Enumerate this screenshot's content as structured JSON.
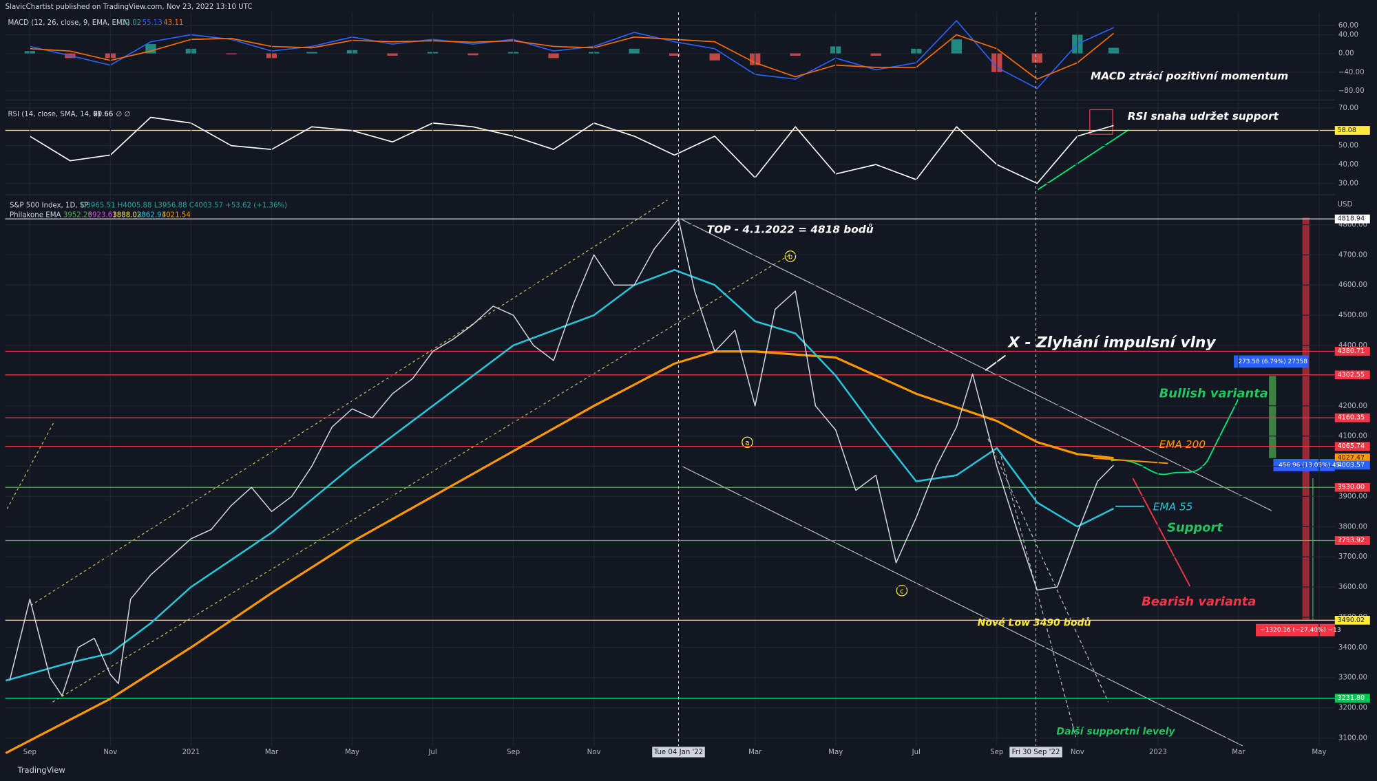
{
  "header": {
    "publisher": "SlavicChartist published on TradingView.com, Nov 23, 2022 13:10 UTC",
    "brand": "TradingView"
  },
  "chart_data": [
    {
      "type": "line",
      "title": "MACD (12, 26, close, 9, EMA, EMA)",
      "xlim": [
        -0.61,
        32.39
      ],
      "ylim": [
        -96,
        88
      ],
      "yticks": [
        {
          "value": 60,
          "label": "60.00"
        },
        {
          "value": 40,
          "label": "40.00"
        },
        {
          "value": 0,
          "label": "0.00"
        },
        {
          "value": -40,
          "label": "−40.00"
        },
        {
          "value": -80,
          "label": "−80.00"
        }
      ],
      "x": [
        0,
        1,
        2,
        3,
        4,
        5,
        6,
        7,
        8,
        9,
        10,
        11,
        12,
        13,
        14,
        15,
        16,
        17,
        18,
        19,
        20,
        21,
        22,
        23,
        24,
        25,
        26,
        26.9
      ],
      "series": [
        {
          "style": "bars",
          "color_up": "#26a69a",
          "color_down": "#ef5350",
          "values": [
            5,
            -10,
            -10,
            20,
            10,
            -2,
            -10,
            3,
            7,
            -5,
            3,
            -4,
            3,
            -10,
            3,
            10,
            -5,
            -15,
            -25,
            -5,
            15,
            -5,
            10,
            30,
            -40,
            -20,
            40,
            12.02
          ]
        },
        {
          "color": "#2962ff",
          "values": [
            15,
            -5,
            -25,
            25,
            40,
            30,
            5,
            15,
            35,
            20,
            30,
            20,
            30,
            5,
            15,
            45,
            25,
            10,
            -45,
            -55,
            -10,
            -35,
            -20,
            70,
            -30,
            -75,
            20,
            55.13
          ]
        },
        {
          "color": "#ff6d00",
          "values": [
            10,
            5,
            -15,
            5,
            30,
            32,
            15,
            12,
            28,
            25,
            27,
            24,
            27,
            15,
            12,
            35,
            30,
            25,
            -20,
            -50,
            -25,
            -30,
            -30,
            40,
            10,
            -55,
            -20,
            43.11
          ]
        }
      ],
      "annotation": "MACD ztrácí pozitivní momentum"
    },
    {
      "type": "line",
      "title": "RSI (14, close, SMA, 14, 2)",
      "title_suffix": "∅ ∅",
      "xlim": [
        -0.61,
        32.39
      ],
      "ylim": [
        25.8,
        72.3
      ],
      "yticks": [
        {
          "value": 70,
          "label": "70.00"
        },
        {
          "value": 50,
          "label": "50.00"
        },
        {
          "value": 40,
          "label": "40.00"
        },
        {
          "value": 30,
          "label": "30.00"
        }
      ],
      "x": [
        0,
        1,
        2,
        3,
        4,
        5,
        6,
        7,
        8,
        9,
        10,
        11,
        12,
        13,
        14,
        15,
        16,
        17,
        18,
        19,
        20,
        21,
        22,
        23,
        24,
        25,
        26,
        26.9
      ],
      "series": [
        {
          "color": "#ffffff",
          "values": [
            55,
            42,
            45,
            65,
            62,
            50,
            48,
            60,
            58,
            52,
            62,
            60,
            55,
            48,
            62,
            55,
            45,
            55,
            33,
            60,
            35,
            40,
            32,
            60,
            40,
            30,
            55,
            60.66
          ]
        }
      ],
      "levels": [
        {
          "value": 58.08,
          "color": "#ffeb3b",
          "tag": "#ffeb3b"
        }
      ],
      "annotation": "RSI snaha udržet support"
    },
    {
      "type": "line",
      "title": "S&P 500 Index, 1D, SP",
      "ohlc": "O3965.51 H4005.88 L3956.88 C4003.57 +53.62 (+1.36%)",
      "unit": "USD",
      "ema_legend": {
        "title": "Philakone EMA",
        "values": [
          3952.26,
          3923.61,
          3888.02,
          3862.93,
          4021.54
        ],
        "colors": [
          "#4caf50",
          "#e040fb",
          "#ffeb3b",
          "#26c6da",
          "#ff9800"
        ]
      },
      "xlim": [
        -0.61,
        32.39
      ],
      "ylim": [
        3073.8,
        4846.5
      ],
      "xticks": [
        {
          "value": 0,
          "label": "Sep"
        },
        {
          "value": 2,
          "label": "Nov"
        },
        {
          "value": 4,
          "label": "2021"
        },
        {
          "value": 6,
          "label": "Mar"
        },
        {
          "value": 8,
          "label": "May"
        },
        {
          "value": 10,
          "label": "Jul"
        },
        {
          "value": 12,
          "label": "Sep"
        },
        {
          "value": 14,
          "label": "Nov"
        },
        {
          "value": 16.1,
          "label": "Tue 04 Jan '22",
          "highlight": true
        },
        {
          "value": 18,
          "label": "Mar"
        },
        {
          "value": 20,
          "label": "May"
        },
        {
          "value": 22,
          "label": "Jul"
        },
        {
          "value": 24,
          "label": "Sep"
        },
        {
          "value": 24.97,
          "label": "Fri 30 Sep '22",
          "highlight": true
        },
        {
          "value": 26,
          "label": "Nov"
        },
        {
          "value": 28,
          "label": "2023"
        },
        {
          "value": 30,
          "label": "Mar"
        },
        {
          "value": 32,
          "label": "May"
        }
      ],
      "yticks": [
        {
          "value": 3100,
          "label": "3100.00"
        },
        {
          "value": 3200,
          "label": "3200.00"
        },
        {
          "value": 3300,
          "label": "3300.00"
        },
        {
          "value": 3400,
          "label": "3400.00"
        },
        {
          "value": 3500,
          "label": "3500.00"
        },
        {
          "value": 3600,
          "label": "3600.00"
        },
        {
          "value": 3700,
          "label": "3700.00"
        },
        {
          "value": 3800,
          "label": "3800.00"
        },
        {
          "value": 3900,
          "label": "3900.00"
        },
        {
          "value": 4000,
          "label": "4000.00"
        },
        {
          "value": 4100,
          "label": "4100.00"
        },
        {
          "value": 4200,
          "label": "4200.00"
        },
        {
          "value": 4300,
          "label": "4300.00"
        },
        {
          "value": 4400,
          "label": "4400.00"
        },
        {
          "value": 4500,
          "label": "4500.00"
        },
        {
          "value": 4600,
          "label": "4600.00"
        },
        {
          "value": 4700,
          "label": "4700.00"
        },
        {
          "value": 4800,
          "label": "4800.00"
        }
      ],
      "series": [
        {
          "color": "#ff9800",
          "width": 2.5,
          "x": [
            -0.6,
            2,
            4,
            6,
            8,
            10,
            12,
            14,
            16,
            17,
            18,
            20,
            22,
            24,
            25,
            26,
            26.9
          ],
          "values": [
            3050,
            3230,
            3400,
            3580,
            3750,
            3900,
            4050,
            4200,
            4340,
            4380,
            4380,
            4360,
            4240,
            4150,
            4080,
            4040,
            4027
          ]
        },
        {
          "color": "#26c6da",
          "width": 2,
          "x": [
            -0.6,
            1,
            2,
            3,
            4,
            6,
            8,
            10,
            12,
            14,
            15,
            16,
            17,
            18,
            19,
            20,
            21,
            22,
            23,
            24,
            25,
            26,
            26.9
          ],
          "values": [
            3290,
            3350,
            3380,
            3480,
            3600,
            3780,
            4000,
            4200,
            4400,
            4500,
            4600,
            4650,
            4600,
            4480,
            4440,
            4300,
            4120,
            3950,
            3970,
            4060,
            3880,
            3800,
            3860
          ]
        },
        {
          "color": "#d1d4dc",
          "width": 1.2,
          "x": [
            -0.5,
            0,
            0.5,
            0.8,
            1.2,
            1.6,
            2,
            2.2,
            2.5,
            3,
            3.5,
            4,
            4.5,
            5,
            5.5,
            6,
            6.5,
            7,
            7.5,
            8,
            8.5,
            9,
            9.5,
            10,
            10.5,
            11,
            11.5,
            12,
            12.5,
            13,
            13.5,
            14,
            14.5,
            15,
            15.5,
            16.1,
            16.5,
            17,
            17.5,
            18,
            18.5,
            19,
            19.5,
            20,
            20.5,
            21,
            21.5,
            22,
            22.5,
            23,
            23.4,
            24,
            24.5,
            25,
            25.5,
            26,
            26.5,
            26.9
          ],
          "values": [
            3290,
            3560,
            3300,
            3240,
            3400,
            3430,
            3310,
            3280,
            3560,
            3640,
            3700,
            3760,
            3790,
            3870,
            3930,
            3850,
            3900,
            4000,
            4130,
            4190,
            4160,
            4240,
            4290,
            4380,
            4420,
            4470,
            4530,
            4500,
            4400,
            4350,
            4540,
            4700,
            4600,
            4600,
            4720,
            4818,
            4580,
            4380,
            4450,
            4200,
            4520,
            4580,
            4200,
            4120,
            3920,
            3970,
            3680,
            3830,
            4000,
            4130,
            4305,
            4000,
            3790,
            3590,
            3600,
            3780,
            3950,
            4003.57
          ]
        }
      ],
      "levels": [
        {
          "value": 4818.94,
          "color": "#d1d4dc",
          "tag": "#ffffff"
        },
        {
          "value": 4380.71,
          "color": "#f23645",
          "tag": "#f23645"
        },
        {
          "value": 4302.55,
          "color": "#f23645",
          "tag": "#f23645"
        },
        {
          "value": 4160.35,
          "color": "#f23645",
          "tag": "#f23645"
        },
        {
          "value": 4065.74,
          "color": "#f23645",
          "tag": "#f23645"
        },
        {
          "value": 4027.47,
          "color": "#ff9800",
          "tag": "#ff9800",
          "line": false
        },
        {
          "value": 4003.57,
          "color": "#2962ff",
          "tag": "#2962ff",
          "line": false
        },
        {
          "value": 3930,
          "label": "3930.00",
          "color": "#4caf50",
          "tag": "#f23645"
        },
        {
          "value": 3753.92,
          "color": "#4caf50",
          "tag": "#f23645"
        },
        {
          "value": 3490.02,
          "color": "#ffeb3b",
          "tag": "#ffeb3b"
        },
        {
          "value": 3231.8,
          "label": "3231.80",
          "color": "#00e676",
          "tag": "#00c853"
        }
      ],
      "annotations": [
        "TOP - 4.1.2022 = 4818 bodů",
        "X - Zlyhání impulsní vlny",
        "Bullish varianta",
        "EMA 200",
        "EMA 55",
        "Support",
        "Bearish varianta",
        "Nové Low 3490 bodů",
        "Další supportní levely",
        "a",
        "b",
        "c",
        "273.58 (6.79%) 27358",
        "456.96 (13.05%) 45",
        "−1320.16 (−27.40%) −13"
      ]
    }
  ]
}
